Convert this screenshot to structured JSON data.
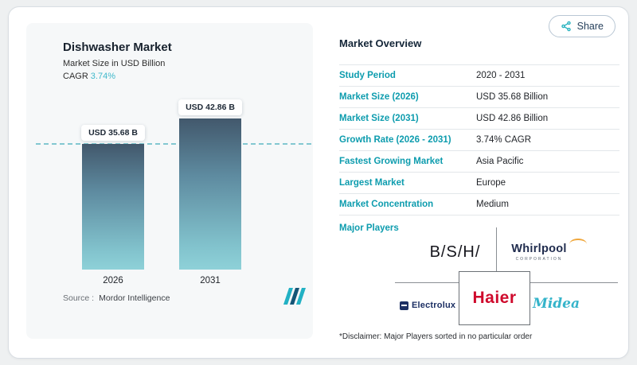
{
  "share": {
    "label": "Share"
  },
  "chart_panel": {
    "title": "Dishwasher Market",
    "subtitle": "Market Size in USD Billion",
    "cagr_label": "CAGR",
    "cagr_value": "3.74%",
    "source_label": "Source :",
    "source_value": "Mordor Intelligence"
  },
  "chart_data": {
    "type": "bar",
    "title": "Dishwasher Market",
    "subtitle": "Market Size in USD Billion",
    "unit": "USD Billion",
    "categories": [
      "2026",
      "2031"
    ],
    "values": [
      35.68,
      42.86
    ],
    "bar_labels": [
      "USD 35.68 B",
      "USD 42.86 B"
    ],
    "cagr": "3.74%",
    "reference_line_value": 35.68,
    "source": "Mordor Intelligence",
    "grid": false,
    "legend": false
  },
  "overview": {
    "title": "Market Overview",
    "rows": [
      {
        "label": "Study Period",
        "value": "2020 - 2031"
      },
      {
        "label": "Market Size (2026)",
        "value": "USD 35.68 Billion"
      },
      {
        "label": "Market Size (2031)",
        "value": "USD 42.86 Billion"
      },
      {
        "label": "Growth Rate (2026 - 2031)",
        "value": "3.74% CAGR"
      },
      {
        "label": "Fastest Growing Market",
        "value": "Asia Pacific"
      },
      {
        "label": "Largest Market",
        "value": "Europe"
      },
      {
        "label": "Market Concentration",
        "value": "Medium"
      }
    ],
    "major_players_label": "Major Players",
    "players": [
      "B/S/H/",
      "Whirlpool",
      "Electrolux",
      "Haier",
      "Midea"
    ],
    "whirlpool_sub": "CORPORATION",
    "disclaimer": "*Disclaimer: Major Players sorted in no particular order"
  },
  "colors": {
    "accent_teal": "#0d9cae",
    "cagr_teal": "#41b9cb",
    "haier_red": "#cf0a2c",
    "midea_teal": "#35b4ca",
    "bar_gradient_top": "#42586c",
    "bar_gradient_bottom": "#8ed1d8"
  }
}
